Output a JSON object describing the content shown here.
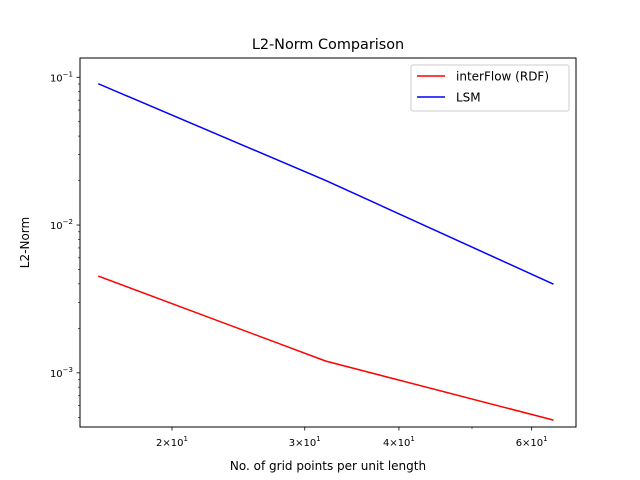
{
  "chart_data": {
    "type": "line",
    "title": "L2-Norm Comparison",
    "xlabel": "No. of grid points per unit length",
    "ylabel": "L2-Norm",
    "xscale": "log",
    "yscale": "log",
    "xlim": [
      15.1,
      68.7
    ],
    "ylim": [
      0.00043,
      0.135
    ],
    "grid": false,
    "legend_position": "top-right",
    "x_major_ticks": [
      {
        "value": 20,
        "base": "2",
        "mult": "×10",
        "exp": "1"
      },
      {
        "value": 30,
        "base": "3",
        "mult": "×10",
        "exp": "1"
      },
      {
        "value": 40,
        "base": "4",
        "mult": "×10",
        "exp": "1"
      },
      {
        "value": 60,
        "base": "6",
        "mult": "×10",
        "exp": "1"
      }
    ],
    "x_minor_ticks": [
      50
    ],
    "y_major_ticks": [
      {
        "value": 0.1,
        "base": "10",
        "exp": "−1"
      },
      {
        "value": 0.01,
        "base": "10",
        "exp": "−2"
      },
      {
        "value": 0.001,
        "base": "10",
        "exp": "−3"
      }
    ],
    "y_minor_ticks": [
      0.0005,
      0.0006,
      0.0007,
      0.0008,
      0.0009,
      0.002,
      0.003,
      0.004,
      0.005,
      0.006,
      0.007,
      0.008,
      0.009,
      0.02,
      0.03,
      0.04,
      0.05,
      0.06,
      0.07,
      0.08,
      0.09
    ],
    "series": [
      {
        "name": "interFlow (RDF)",
        "color": "#ff0000",
        "x": [
          16,
          32,
          64
        ],
        "y": [
          0.0045,
          0.0012,
          0.00048
        ]
      },
      {
        "name": "LSM",
        "color": "#0000ff",
        "x": [
          16,
          32,
          64
        ],
        "y": [
          0.09,
          0.02,
          0.004
        ]
      }
    ]
  }
}
